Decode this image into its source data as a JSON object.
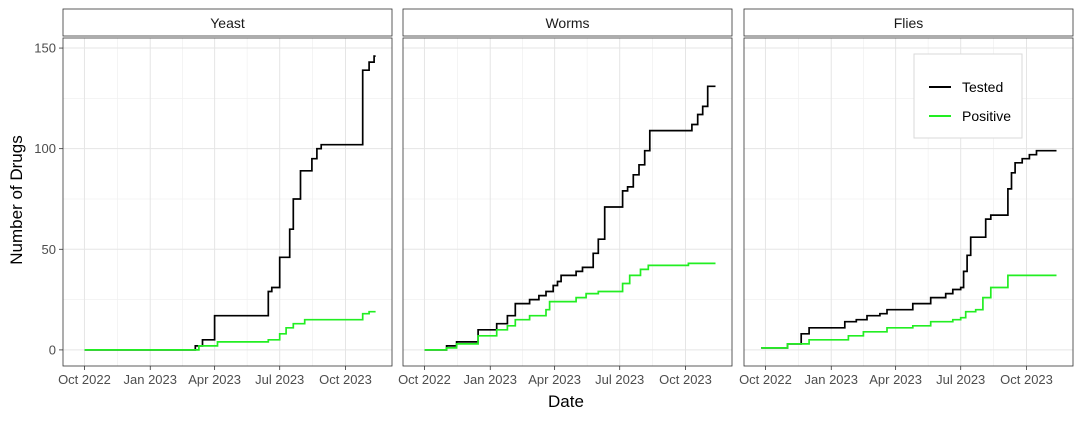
{
  "chart_data": {
    "type": "line",
    "style": "step",
    "xlabel": "Date",
    "ylabel": "Number of Drugs",
    "xlim": [
      "2022-09-01",
      "2023-12-05"
    ],
    "ylim": [
      -8,
      155
    ],
    "x_ticks": [
      {
        "date": "2022-10-01",
        "label": "Oct 2022"
      },
      {
        "date": "2023-01-01",
        "label": "Jan 2023"
      },
      {
        "date": "2023-04-01",
        "label": "Apr 2023"
      },
      {
        "date": "2023-07-01",
        "label": "Jul 2023"
      },
      {
        "date": "2023-10-01",
        "label": "Oct 2023"
      }
    ],
    "y_ticks": [
      0,
      50,
      100,
      150
    ],
    "grid": true,
    "legend": {
      "placement": "top-right inside Flies panel",
      "entries": [
        {
          "name": "Tested",
          "color": "#000000"
        },
        {
          "name": "Positive",
          "color": "#22ee22"
        }
      ]
    },
    "panels": [
      {
        "title": "Yeast",
        "series": [
          {
            "name": "Tested",
            "color": "#000000",
            "points": [
              [
                "2022-10-01",
                0
              ],
              [
                "2023-03-05",
                2
              ],
              [
                "2023-03-15",
                5
              ],
              [
                "2023-04-01",
                17
              ],
              [
                "2023-06-15",
                29
              ],
              [
                "2023-06-20",
                31
              ],
              [
                "2023-07-01",
                46
              ],
              [
                "2023-07-15",
                60
              ],
              [
                "2023-07-20",
                75
              ],
              [
                "2023-07-30",
                89
              ],
              [
                "2023-08-15",
                95
              ],
              [
                "2023-08-22",
                100
              ],
              [
                "2023-08-28",
                102
              ],
              [
                "2023-10-25",
                139
              ],
              [
                "2023-11-03",
                143
              ],
              [
                "2023-11-10",
                146
              ],
              [
                "2023-11-12",
                146
              ]
            ]
          },
          {
            "name": "Positive",
            "color": "#22ee22",
            "points": [
              [
                "2022-10-01",
                0
              ],
              [
                "2023-03-10",
                2
              ],
              [
                "2023-04-05",
                4
              ],
              [
                "2023-06-15",
                5
              ],
              [
                "2023-07-01",
                8
              ],
              [
                "2023-07-10",
                11
              ],
              [
                "2023-07-20",
                13
              ],
              [
                "2023-08-05",
                15
              ],
              [
                "2023-10-25",
                18
              ],
              [
                "2023-11-03",
                19
              ],
              [
                "2023-11-12",
                19
              ]
            ]
          }
        ]
      },
      {
        "title": "Worms",
        "series": [
          {
            "name": "Tested",
            "color": "#000000",
            "points": [
              [
                "2022-10-01",
                0
              ],
              [
                "2022-11-01",
                2
              ],
              [
                "2022-11-15",
                4
              ],
              [
                "2022-12-15",
                10
              ],
              [
                "2023-01-10",
                13
              ],
              [
                "2023-01-25",
                17
              ],
              [
                "2023-02-05",
                23
              ],
              [
                "2023-02-25",
                25
              ],
              [
                "2023-03-10",
                27
              ],
              [
                "2023-03-20",
                29
              ],
              [
                "2023-03-30",
                32
              ],
              [
                "2023-04-05",
                34
              ],
              [
                "2023-04-10",
                37
              ],
              [
                "2023-05-01",
                39
              ],
              [
                "2023-05-10",
                41
              ],
              [
                "2023-05-25",
                48
              ],
              [
                "2023-06-01",
                55
              ],
              [
                "2023-06-10",
                71
              ],
              [
                "2023-07-05",
                79
              ],
              [
                "2023-07-12",
                81
              ],
              [
                "2023-07-20",
                87
              ],
              [
                "2023-07-28",
                92
              ],
              [
                "2023-08-05",
                99
              ],
              [
                "2023-08-12",
                109
              ],
              [
                "2023-10-10",
                112
              ],
              [
                "2023-10-18",
                117
              ],
              [
                "2023-10-25",
                121
              ],
              [
                "2023-11-01",
                131
              ],
              [
                "2023-11-12",
                131
              ]
            ]
          },
          {
            "name": "Positive",
            "color": "#22ee22",
            "points": [
              [
                "2022-10-01",
                0
              ],
              [
                "2022-11-01",
                1
              ],
              [
                "2022-11-15",
                3
              ],
              [
                "2022-12-15",
                7
              ],
              [
                "2023-01-10",
                10
              ],
              [
                "2023-01-25",
                12
              ],
              [
                "2023-02-05",
                15
              ],
              [
                "2023-02-25",
                17
              ],
              [
                "2023-03-20",
                20
              ],
              [
                "2023-03-25",
                24
              ],
              [
                "2023-05-01",
                26
              ],
              [
                "2023-05-15",
                28
              ],
              [
                "2023-06-01",
                29
              ],
              [
                "2023-07-05",
                33
              ],
              [
                "2023-07-15",
                37
              ],
              [
                "2023-07-30",
                40
              ],
              [
                "2023-08-10",
                42
              ],
              [
                "2023-10-05",
                43
              ],
              [
                "2023-11-12",
                43
              ]
            ]
          }
        ]
      },
      {
        "title": "Flies",
        "series": [
          {
            "name": "Tested",
            "color": "#000000",
            "points": [
              [
                "2022-09-25",
                1
              ],
              [
                "2022-11-01",
                3
              ],
              [
                "2022-11-20",
                8
              ],
              [
                "2022-12-01",
                11
              ],
              [
                "2023-01-20",
                14
              ],
              [
                "2023-02-05",
                15
              ],
              [
                "2023-02-20",
                17
              ],
              [
                "2023-03-10",
                18
              ],
              [
                "2023-03-20",
                20
              ],
              [
                "2023-04-25",
                23
              ],
              [
                "2023-05-20",
                26
              ],
              [
                "2023-06-10",
                28
              ],
              [
                "2023-06-20",
                30
              ],
              [
                "2023-07-01",
                31
              ],
              [
                "2023-07-05",
                39
              ],
              [
                "2023-07-10",
                47
              ],
              [
                "2023-07-15",
                56
              ],
              [
                "2023-08-05",
                65
              ],
              [
                "2023-08-12",
                67
              ],
              [
                "2023-09-05",
                80
              ],
              [
                "2023-09-10",
                88
              ],
              [
                "2023-09-15",
                93
              ],
              [
                "2023-09-25",
                95
              ],
              [
                "2023-10-05",
                97
              ],
              [
                "2023-10-15",
                99
              ],
              [
                "2023-11-12",
                99
              ]
            ]
          },
          {
            "name": "Positive",
            "color": "#22ee22",
            "points": [
              [
                "2022-09-25",
                1
              ],
              [
                "2022-11-01",
                3
              ],
              [
                "2022-12-01",
                5
              ],
              [
                "2023-01-25",
                7
              ],
              [
                "2023-02-15",
                9
              ],
              [
                "2023-03-20",
                11
              ],
              [
                "2023-04-25",
                12
              ],
              [
                "2023-05-20",
                14
              ],
              [
                "2023-06-20",
                15
              ],
              [
                "2023-07-01",
                16
              ],
              [
                "2023-07-08",
                19
              ],
              [
                "2023-07-22",
                20
              ],
              [
                "2023-08-01",
                26
              ],
              [
                "2023-08-12",
                31
              ],
              [
                "2023-09-05",
                37
              ],
              [
                "2023-11-12",
                37
              ]
            ]
          }
        ]
      }
    ]
  }
}
